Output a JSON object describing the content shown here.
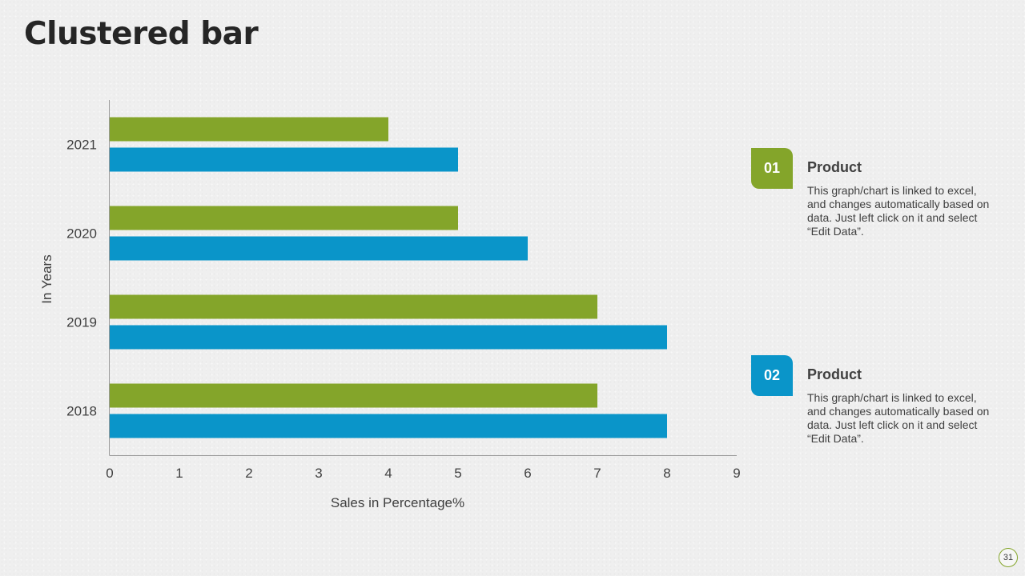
{
  "slide": {
    "title": "Clustered bar",
    "page_number": "31"
  },
  "colors": {
    "product_01": "#84a52a",
    "product_02": "#0a95c9",
    "axis": "#9a9a9a",
    "text": "#404040"
  },
  "legend": [
    {
      "number": "01",
      "title": "Product",
      "description": "This graph/chart is linked to excel, and changes automatically based on data. Just left click on it and select “Edit Data”."
    },
    {
      "number": "02",
      "title": "Product",
      "description": "This graph/chart is linked to excel, and changes automatically based on data. Just left click on it and select “Edit Data”."
    }
  ],
  "chart_data": {
    "type": "bar",
    "orientation": "horizontal",
    "title": "",
    "xlabel": "Sales in Percentage%",
    "ylabel": "In Years",
    "categories": [
      "2018",
      "2019",
      "2020",
      "2021"
    ],
    "xlim": [
      0,
      9
    ],
    "xticks": [
      0,
      1,
      2,
      3,
      4,
      5,
      6,
      7,
      8,
      9
    ],
    "grid": false,
    "series": [
      {
        "name": "Product 01",
        "color": "#84a52a",
        "values": [
          7,
          7,
          5,
          4
        ]
      },
      {
        "name": "Product 02",
        "color": "#0a95c9",
        "values": [
          8,
          8,
          6,
          5
        ]
      }
    ]
  }
}
